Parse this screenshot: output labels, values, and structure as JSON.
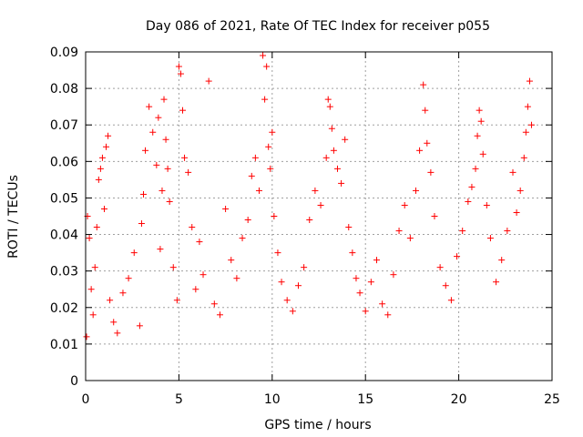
{
  "chart_data": {
    "type": "scatter",
    "title": "Day 086 of 2021, Rate Of TEC Index for receiver p055",
    "xlabel": "GPS time / hours",
    "ylabel": "ROTI / TECUs",
    "xlim": [
      0,
      25
    ],
    "ylim": [
      0,
      0.09
    ],
    "x_ticks": [
      0,
      5,
      10,
      15,
      20,
      25
    ],
    "x_tick_labels": [
      "0",
      "5",
      "10",
      "15",
      "20",
      "25"
    ],
    "y_ticks": [
      0,
      0.01,
      0.02,
      0.03,
      0.04,
      0.05,
      0.06,
      0.07,
      0.08,
      0.09
    ],
    "y_tick_labels": [
      "0",
      "0.01",
      "0.02",
      "0.03",
      "0.04",
      "0.05",
      "0.06",
      "0.07",
      "0.08",
      "0.09"
    ],
    "grid": true,
    "marker": "+",
    "colors": {
      "series": "#ff0000",
      "grid": "#a0a0a0",
      "axes": "#000000"
    },
    "series": [
      {
        "x": [
          0.05,
          0.1,
          0.2,
          0.3,
          0.4,
          0.5,
          0.6,
          0.7,
          0.8,
          0.9,
          1.0,
          1.1,
          1.2,
          1.3,
          1.5,
          1.7,
          2.0,
          2.3,
          2.6,
          2.9,
          3.0,
          3.1,
          3.2,
          3.4,
          3.6,
          3.8,
          3.9,
          4.0,
          4.1,
          4.2,
          4.3,
          4.4,
          4.5,
          4.7,
          4.9,
          5.0,
          5.1,
          5.2,
          5.3,
          5.5,
          5.7,
          5.9,
          6.1,
          6.3,
          6.6,
          6.9,
          7.2,
          7.5,
          7.8,
          8.1,
          8.4,
          8.7,
          8.9,
          9.1,
          9.3,
          9.5,
          9.6,
          9.7,
          9.8,
          9.9,
          10.0,
          10.1,
          10.3,
          10.5,
          10.8,
          11.1,
          11.4,
          11.7,
          12.0,
          12.3,
          12.6,
          12.9,
          13.0,
          13.1,
          13.2,
          13.3,
          13.5,
          13.7,
          13.9,
          14.1,
          14.3,
          14.5,
          14.7,
          15.0,
          15.3,
          15.6,
          15.9,
          16.2,
          16.5,
          16.8,
          17.1,
          17.4,
          17.7,
          17.9,
          18.1,
          18.2,
          18.3,
          18.5,
          18.7,
          19.0,
          19.3,
          19.6,
          19.9,
          20.2,
          20.5,
          20.7,
          20.9,
          21.0,
          21.1,
          21.2,
          21.3,
          21.5,
          21.7,
          22.0,
          22.3,
          22.6,
          22.9,
          23.1,
          23.3,
          23.5,
          23.6,
          23.7,
          23.8,
          23.9
        ],
        "y": [
          0.012,
          0.045,
          0.039,
          0.025,
          0.018,
          0.031,
          0.042,
          0.055,
          0.058,
          0.061,
          0.047,
          0.064,
          0.067,
          0.022,
          0.016,
          0.013,
          0.024,
          0.028,
          0.035,
          0.015,
          0.043,
          0.051,
          0.063,
          0.075,
          0.068,
          0.059,
          0.072,
          0.036,
          0.052,
          0.077,
          0.066,
          0.058,
          0.049,
          0.031,
          0.022,
          0.086,
          0.084,
          0.074,
          0.061,
          0.057,
          0.042,
          0.025,
          0.038,
          0.029,
          0.082,
          0.021,
          0.018,
          0.047,
          0.033,
          0.028,
          0.039,
          0.044,
          0.056,
          0.061,
          0.052,
          0.089,
          0.077,
          0.086,
          0.064,
          0.058,
          0.068,
          0.045,
          0.035,
          0.027,
          0.022,
          0.019,
          0.026,
          0.031,
          0.044,
          0.052,
          0.048,
          0.061,
          0.077,
          0.075,
          0.069,
          0.063,
          0.058,
          0.054,
          0.066,
          0.042,
          0.035,
          0.028,
          0.024,
          0.019,
          0.027,
          0.033,
          0.021,
          0.018,
          0.029,
          0.041,
          0.048,
          0.039,
          0.052,
          0.063,
          0.081,
          0.074,
          0.065,
          0.057,
          0.045,
          0.031,
          0.026,
          0.022,
          0.034,
          0.041,
          0.049,
          0.053,
          0.058,
          0.067,
          0.074,
          0.071,
          0.062,
          0.048,
          0.039,
          0.027,
          0.033,
          0.041,
          0.057,
          0.046,
          0.052,
          0.061,
          0.068,
          0.075,
          0.082,
          0.07
        ]
      }
    ]
  }
}
